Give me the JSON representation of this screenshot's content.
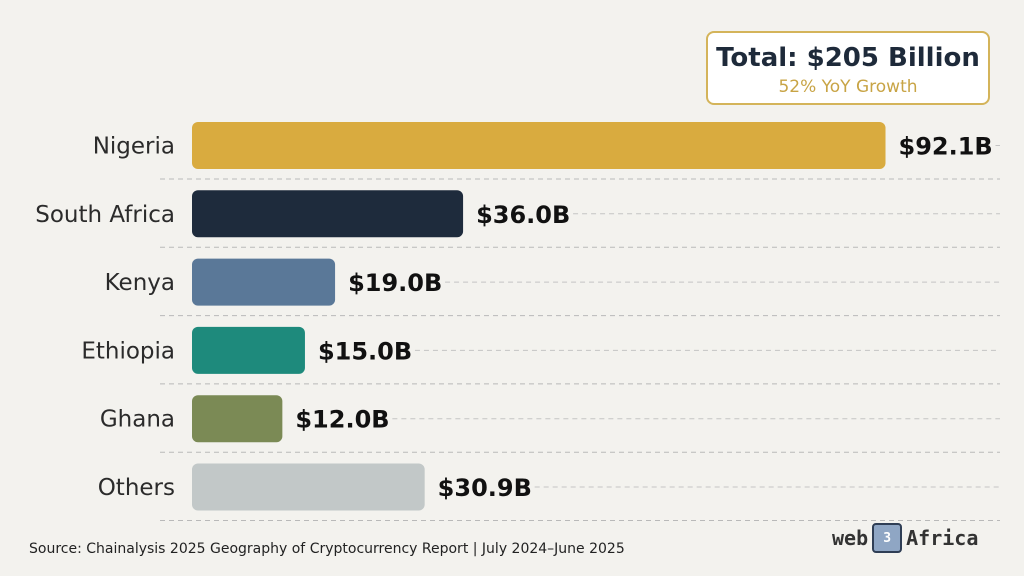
{
  "summary": {
    "total": "Total: $205 Billion",
    "growth": "52% YoY Growth"
  },
  "chart_data": {
    "type": "bar",
    "orientation": "horizontal",
    "categories": [
      "Nigeria",
      "South Africa",
      "Kenya",
      "Ethiopia",
      "Ghana",
      "Others"
    ],
    "values": [
      92.1,
      36.0,
      19.0,
      15.0,
      12.0,
      30.9
    ],
    "value_labels": [
      "$92.1B",
      "$36.0B",
      "$19.0B",
      "$15.0B",
      "$12.0B",
      "$30.9B"
    ],
    "colors": [
      "#d9ab3f",
      "#1e2b3c",
      "#5a7898",
      "#1e8a7c",
      "#7b8a55",
      "#c2c8c8"
    ],
    "title": "",
    "xlabel": "",
    "ylabel": "",
    "xlim": [
      0,
      100
    ],
    "grid": "dashed horizontal guides"
  },
  "footer": {
    "source": "Source: Chainalysis 2025 Geography of Cryptocurrency Report | July 2024–June 2025",
    "logo_left": "web",
    "logo_mark": "3",
    "logo_right": "Africa"
  }
}
